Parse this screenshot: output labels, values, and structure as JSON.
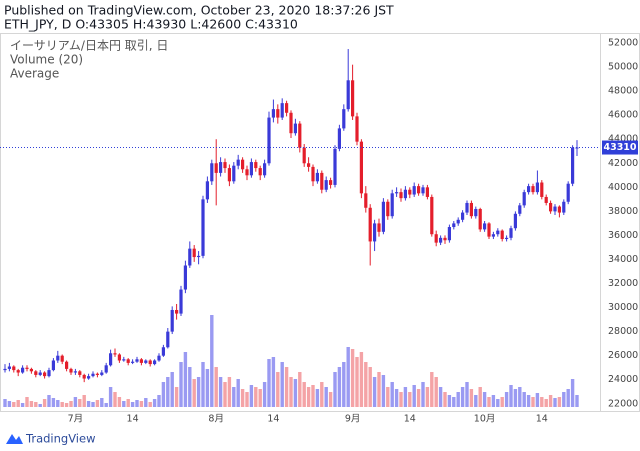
{
  "title": "Published on TradingView.com, October 23, 2020 18:37:26 JST",
  "subtitle": "ETH_JPY, D O:43305 H:43930 L:42600 C:43310",
  "brand": "TradingView",
  "chart_data": {
    "type": "candlestick",
    "legend": [
      "イーサリアム/日本円 取引, 日",
      "Volume (20)",
      "Average"
    ],
    "up_color": "#3a3ad8",
    "down_color": "#e41e2b",
    "volume_up_color": "#9a9af2",
    "volume_down_color": "#f4a3a6",
    "price_line_color": "#2f3fd8",
    "grid": false,
    "ylim": [
      21400,
      52750
    ],
    "yticks": [
      22000,
      24000,
      26000,
      28000,
      30000,
      32000,
      34000,
      36000,
      38000,
      40000,
      42000,
      44000,
      46000,
      48000,
      50000,
      52000
    ],
    "vlim": [
      0,
      100
    ],
    "categories": [
      null,
      null,
      null,
      null,
      null,
      null,
      null,
      null,
      null,
      null,
      null,
      null,
      null,
      null,
      null,
      null,
      "7月",
      null,
      null,
      null,
      null,
      null,
      null,
      null,
      null,
      null,
      null,
      null,
      null,
      "14",
      null,
      null,
      null,
      null,
      null,
      null,
      null,
      null,
      null,
      null,
      null,
      null,
      null,
      null,
      null,
      null,
      null,
      null,
      "8月",
      null,
      null,
      null,
      null,
      null,
      null,
      null,
      null,
      null,
      null,
      null,
      null,
      "14",
      null,
      null,
      null,
      null,
      null,
      null,
      null,
      null,
      null,
      null,
      null,
      null,
      null,
      null,
      null,
      null,
      null,
      "9月",
      null,
      null,
      null,
      null,
      null,
      null,
      null,
      null,
      null,
      null,
      null,
      null,
      "14",
      null,
      null,
      null,
      null,
      null,
      null,
      null,
      null,
      null,
      null,
      null,
      null,
      null,
      null,
      null,
      null,
      "10月",
      null,
      null,
      null,
      null,
      null,
      null,
      null,
      null,
      null,
      null,
      null,
      null,
      "14",
      null,
      null,
      null,
      null,
      null,
      null,
      null,
      null,
      null
    ],
    "values": [
      [
        24800,
        25300,
        24600,
        24900
      ],
      [
        24900,
        25400,
        24700,
        25100
      ],
      [
        25100,
        25200,
        24600,
        24800
      ],
      [
        24800,
        24900,
        24300,
        24600
      ],
      [
        24600,
        25200,
        24500,
        25000
      ],
      [
        25000,
        25200,
        24700,
        24900
      ],
      [
        24900,
        25000,
        24500,
        24700
      ],
      [
        24700,
        24800,
        24200,
        24400
      ],
      [
        24400,
        24800,
        24300,
        24600
      ],
      [
        24600,
        24700,
        24100,
        24300
      ],
      [
        24300,
        25000,
        24200,
        24800
      ],
      [
        24800,
        25800,
        24700,
        25600
      ],
      [
        25600,
        26400,
        25400,
        26000
      ],
      [
        26000,
        26100,
        25300,
        25500
      ],
      [
        25500,
        25600,
        24700,
        24900
      ],
      [
        24900,
        25000,
        24400,
        24600
      ],
      [
        24600,
        24900,
        24400,
        24700
      ],
      [
        24700,
        24800,
        24200,
        24400
      ],
      [
        24400,
        24500,
        23800,
        24100
      ],
      [
        24100,
        24500,
        24000,
        24300
      ],
      [
        24300,
        24700,
        24200,
        24500
      ],
      [
        24500,
        24600,
        24200,
        24400
      ],
      [
        24400,
        24800,
        24300,
        24600
      ],
      [
        24600,
        25400,
        24500,
        25200
      ],
      [
        25200,
        26500,
        25100,
        26200
      ],
      [
        26200,
        26600,
        25900,
        26100
      ],
      [
        26100,
        26200,
        25400,
        25600
      ],
      [
        25600,
        25900,
        25500,
        25700
      ],
      [
        25700,
        25800,
        25200,
        25400
      ],
      [
        25400,
        25700,
        25300,
        25500
      ],
      [
        25500,
        25900,
        25400,
        25700
      ],
      [
        25700,
        25800,
        25200,
        25400
      ],
      [
        25400,
        25700,
        25300,
        25600
      ],
      [
        25600,
        25700,
        25100,
        25300
      ],
      [
        25300,
        25700,
        25200,
        25600
      ],
      [
        25600,
        26200,
        25500,
        26000
      ],
      [
        26000,
        26900,
        25900,
        26700
      ],
      [
        26700,
        28300,
        26600,
        28000
      ],
      [
        28000,
        30100,
        27800,
        29800
      ],
      [
        29800,
        30300,
        29000,
        29500
      ],
      [
        29500,
        31800,
        29300,
        31500
      ],
      [
        31500,
        33900,
        31200,
        33500
      ],
      [
        33500,
        35500,
        33300,
        34900
      ],
      [
        34900,
        35200,
        33800,
        34200
      ],
      [
        34200,
        34700,
        33600,
        34300
      ],
      [
        34300,
        39300,
        34100,
        39000
      ],
      [
        39000,
        40900,
        38700,
        40500
      ],
      [
        40500,
        42300,
        40200,
        42000
      ],
      [
        42000,
        44000,
        38500,
        41200
      ],
      [
        41200,
        42500,
        40900,
        42100
      ],
      [
        42100,
        42400,
        41200,
        41600
      ],
      [
        41600,
        41900,
        40100,
        40500
      ],
      [
        40500,
        42100,
        40300,
        41800
      ],
      [
        41800,
        42700,
        41500,
        42300
      ],
      [
        42300,
        42500,
        41200,
        41500
      ],
      [
        41500,
        41800,
        40600,
        41000
      ],
      [
        41000,
        42400,
        40800,
        42100
      ],
      [
        42100,
        42300,
        41300,
        41600
      ],
      [
        41600,
        41800,
        40600,
        41000
      ],
      [
        41000,
        42300,
        40800,
        42000
      ],
      [
        42000,
        46300,
        41800,
        45800
      ],
      [
        45800,
        47300,
        45400,
        46500
      ],
      [
        46500,
        46900,
        45300,
        45800
      ],
      [
        45800,
        47400,
        45600,
        47000
      ],
      [
        47000,
        47200,
        45900,
        46200
      ],
      [
        46200,
        46400,
        44100,
        44500
      ],
      [
        44500,
        45700,
        44300,
        45300
      ],
      [
        45300,
        45500,
        42900,
        43300
      ],
      [
        43300,
        43600,
        41700,
        42000
      ],
      [
        42000,
        42500,
        41300,
        41700
      ],
      [
        41700,
        41900,
        40100,
        40500
      ],
      [
        40500,
        41500,
        40300,
        41200
      ],
      [
        41200,
        41400,
        39500,
        39800
      ],
      [
        39800,
        40900,
        39600,
        40600
      ],
      [
        40600,
        40800,
        39900,
        40200
      ],
      [
        40200,
        43500,
        40000,
        43200
      ],
      [
        43200,
        45200,
        43000,
        44900
      ],
      [
        44900,
        46900,
        44700,
        46500
      ],
      [
        46500,
        51500,
        46300,
        48900
      ],
      [
        48900,
        50200,
        45600,
        45900
      ],
      [
        45900,
        46200,
        43500,
        43800
      ],
      [
        43800,
        44000,
        39100,
        39500
      ],
      [
        39500,
        40100,
        37900,
        38300
      ],
      [
        38300,
        38600,
        33500,
        35500
      ],
      [
        35500,
        37300,
        34700,
        37000
      ],
      [
        37000,
        37400,
        35900,
        36300
      ],
      [
        36300,
        39100,
        36100,
        38800
      ],
      [
        38800,
        39000,
        37300,
        37600
      ],
      [
        37600,
        39800,
        37400,
        39500
      ],
      [
        39500,
        40000,
        39200,
        39600
      ],
      [
        39600,
        39900,
        38800,
        39100
      ],
      [
        39100,
        40100,
        38900,
        39800
      ],
      [
        39800,
        40000,
        39100,
        39400
      ],
      [
        39400,
        40400,
        39200,
        40100
      ],
      [
        40100,
        40300,
        39300,
        39500
      ],
      [
        39500,
        40200,
        39300,
        40000
      ],
      [
        40000,
        40200,
        39000,
        39200
      ],
      [
        39200,
        39400,
        35900,
        36100
      ],
      [
        36100,
        36400,
        35100,
        35400
      ],
      [
        35400,
        36000,
        35200,
        35800
      ],
      [
        35800,
        36000,
        35300,
        35600
      ],
      [
        35600,
        36900,
        35400,
        36700
      ],
      [
        36700,
        37200,
        36500,
        37000
      ],
      [
        37000,
        37500,
        36800,
        37300
      ],
      [
        37300,
        38100,
        37100,
        37900
      ],
      [
        37900,
        38900,
        37700,
        38700
      ],
      [
        38700,
        38900,
        37400,
        37600
      ],
      [
        37600,
        38400,
        37400,
        38200
      ],
      [
        38200,
        38300,
        36300,
        36500
      ],
      [
        36500,
        37200,
        36300,
        37000
      ],
      [
        37000,
        37100,
        35700,
        35900
      ],
      [
        35900,
        36300,
        35700,
        36100
      ],
      [
        36100,
        36600,
        35900,
        36400
      ],
      [
        36400,
        36500,
        35500,
        35700
      ],
      [
        35700,
        36000,
        35500,
        35800
      ],
      [
        35800,
        36800,
        35600,
        36600
      ],
      [
        36600,
        38000,
        36400,
        37800
      ],
      [
        37800,
        38700,
        37600,
        38500
      ],
      [
        38500,
        39800,
        38300,
        39600
      ],
      [
        39600,
        40300,
        39400,
        40100
      ],
      [
        40100,
        40300,
        39400,
        39600
      ],
      [
        39600,
        41400,
        39400,
        40400
      ],
      [
        40400,
        40600,
        39000,
        39200
      ],
      [
        39200,
        39400,
        38500,
        38700
      ],
      [
        38700,
        38900,
        37800,
        38000
      ],
      [
        38000,
        38600,
        37700,
        38400
      ],
      [
        38400,
        38500,
        37500,
        37900
      ],
      [
        37900,
        39000,
        37700,
        38800
      ],
      [
        38800,
        40500,
        38600,
        40300
      ],
      [
        40300,
        43500,
        40100,
        43305
      ],
      [
        43305,
        43930,
        42600,
        43310
      ]
    ],
    "volume": [
      8,
      6,
      5,
      7,
      4,
      10,
      6,
      5,
      3,
      8,
      12,
      9,
      7,
      5,
      4,
      6,
      10,
      8,
      12,
      6,
      5,
      7,
      9,
      4,
      20,
      15,
      10,
      6,
      8,
      5,
      7,
      6,
      9,
      5,
      8,
      12,
      25,
      30,
      35,
      20,
      45,
      55,
      40,
      28,
      30,
      45,
      38,
      92,
      40,
      30,
      25,
      30,
      20,
      28,
      18,
      15,
      22,
      20,
      18,
      25,
      48,
      50,
      35,
      45,
      40,
      30,
      28,
      35,
      25,
      20,
      22,
      18,
      25,
      20,
      15,
      35,
      40,
      45,
      60,
      58,
      50,
      55,
      45,
      40,
      30,
      35,
      32,
      20,
      25,
      18,
      15,
      20,
      15,
      22,
      18,
      25,
      20,
      35,
      30,
      20,
      15,
      12,
      10,
      15,
      20,
      25,
      18,
      12,
      20,
      15,
      10,
      12,
      8,
      10,
      15,
      22,
      18,
      20,
      15,
      12,
      10,
      14,
      10,
      8,
      12,
      9,
      10,
      15,
      18,
      28,
      12
    ]
  }
}
